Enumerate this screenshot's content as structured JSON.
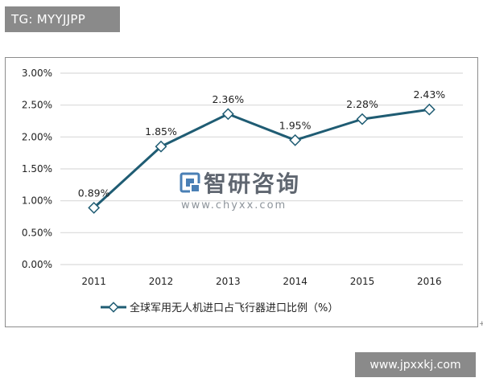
{
  "tag_badge": {
    "text": "TG: MYYJJPP"
  },
  "site_badge": {
    "text": "www.jpxxkj.com"
  },
  "watermark": {
    "logo_icon": "zhiyan-logo-icon",
    "name": "智研咨询",
    "url": "www.chyxx.com"
  },
  "plus_mark": "+",
  "colors": {
    "series": "#1f5c73",
    "grid": "#d9d9d9",
    "badge_bg": "#8a8a8a"
  },
  "chart_data": {
    "type": "line",
    "title": "",
    "xlabel": "",
    "ylabel": "",
    "categories": [
      "2011",
      "2012",
      "2013",
      "2014",
      "2015",
      "2016"
    ],
    "series": [
      {
        "name": "全球军用无人机进口占飞行器进口比例（%）",
        "values": [
          0.89,
          1.85,
          2.36,
          1.95,
          2.28,
          2.43
        ],
        "labels": [
          "0.89%",
          "1.85%",
          "2.36%",
          "1.95%",
          "2.28%",
          "2.43%"
        ]
      }
    ],
    "ylim": [
      0,
      3
    ],
    "yticks": [
      0,
      0.5,
      1,
      1.5,
      2,
      2.5,
      3
    ],
    "ytick_labels": [
      "0.00%",
      "0.50%",
      "1.00%",
      "1.50%",
      "2.00%",
      "2.50%",
      "3.00%"
    ],
    "grid": true,
    "legend_position": "bottom",
    "marker": "diamond"
  }
}
